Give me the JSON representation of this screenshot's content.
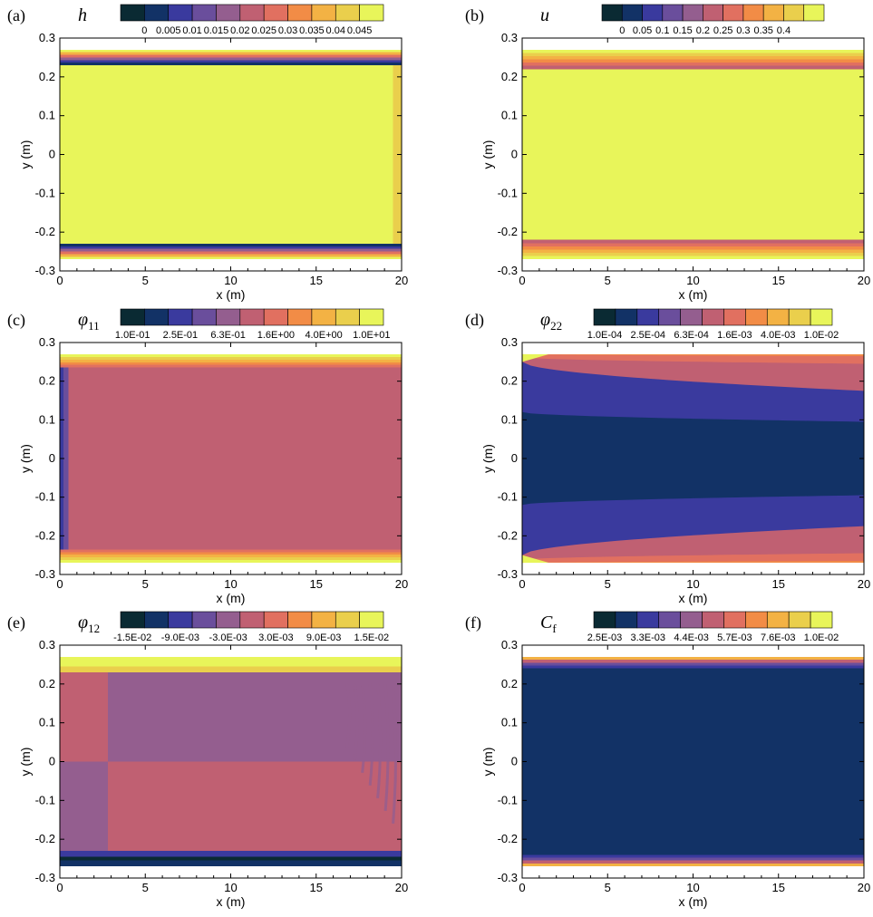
{
  "palette": [
    "#0a2a33",
    "#123266",
    "#3a3a9e",
    "#6a4e9c",
    "#945e8f",
    "#c06072",
    "#e17060",
    "#f28c46",
    "#f3b244",
    "#eacf4c",
    "#e8f55a"
  ],
  "chart_data": [
    {
      "panel": "(a)",
      "variable": "h",
      "variable_sub": "",
      "type": "heatmap",
      "xlabel": "x (m)",
      "ylabel": "y (m)",
      "xlim": [
        0,
        20
      ],
      "ylim": [
        -0.3,
        0.3
      ],
      "xticks": [
        0,
        5,
        10,
        15,
        20
      ],
      "xtick_labels": [
        "0",
        "5",
        "10",
        "15",
        "20"
      ],
      "yticks": [
        0.3,
        0.2,
        0.1,
        0,
        -0.1,
        -0.2,
        -0.3
      ],
      "ytick_labels": [
        "0.3",
        "0.2",
        "0.1",
        "0",
        "-0.1",
        "-0.2",
        "-0.3"
      ],
      "colorbar_labels": [
        "0",
        "0.005",
        "0.01",
        "0.015",
        "0.02",
        "0.025",
        "0.03",
        "0.035",
        "0.04",
        "0.045"
      ],
      "field": "h",
      "bands": [
        {
          "y": [
            0.23,
            0.27
          ],
          "levels": [
            10,
            8,
            6,
            4,
            2,
            1
          ]
        },
        {
          "y": [
            -0.27,
            -0.23
          ],
          "levels": [
            1,
            2,
            4,
            6,
            8,
            10
          ]
        }
      ],
      "regions": [
        {
          "x": [
            0,
            19.5
          ],
          "y": [
            -0.23,
            0.23
          ],
          "level": 10
        },
        {
          "x": [
            19.5,
            20
          ],
          "y": [
            -0.23,
            0.23
          ],
          "level": 9
        }
      ]
    },
    {
      "panel": "(b)",
      "variable": "u",
      "variable_sub": "",
      "type": "heatmap",
      "xlabel": "x (m)",
      "ylabel": "y (m)",
      "xlim": [
        0,
        20
      ],
      "ylim": [
        -0.3,
        0.3
      ],
      "xticks": [
        0,
        5,
        10,
        15,
        20
      ],
      "xtick_labels": [
        "0",
        "5",
        "10",
        "15",
        "20"
      ],
      "yticks": [
        0.3,
        0.2,
        0.1,
        0,
        -0.1,
        -0.2,
        -0.3
      ],
      "ytick_labels": [
        "0.3",
        "0.2",
        "0.1",
        "0",
        "-0.1",
        "-0.2",
        "-0.3"
      ],
      "colorbar_labels": [
        "0",
        "0.05",
        "0.1",
        "0.15",
        "0.2",
        "0.25",
        "0.3",
        "0.35",
        "0.4"
      ],
      "field": "u",
      "bands": [
        {
          "y": [
            0.22,
            0.27
          ],
          "levels": [
            10,
            9,
            8,
            7,
            6,
            5
          ]
        },
        {
          "y": [
            -0.27,
            -0.22
          ],
          "levels": [
            5,
            6,
            7,
            8,
            9,
            10
          ]
        }
      ],
      "regions": [
        {
          "x": [
            0,
            20
          ],
          "y": [
            -0.22,
            0.22
          ],
          "level": 10
        }
      ]
    },
    {
      "panel": "(c)",
      "variable": "φ",
      "variable_sub": "11",
      "type": "heatmap",
      "xlabel": "x (m)",
      "ylabel": "y (m)",
      "xlim": [
        0,
        20
      ],
      "ylim": [
        -0.3,
        0.3
      ],
      "xticks": [
        0,
        5,
        10,
        15,
        20
      ],
      "xtick_labels": [
        "0",
        "5",
        "10",
        "15",
        "20"
      ],
      "yticks": [
        0.3,
        0.2,
        0.1,
        0,
        -0.1,
        -0.2,
        -0.3
      ],
      "ytick_labels": [
        "0.3",
        "0.2",
        "0.1",
        "0",
        "-0.1",
        "-0.2",
        "-0.3"
      ],
      "colorbar_labels": [
        "1.0E-01",
        "2.5E-01",
        "6.3E-01",
        "1.6E+00",
        "4.0E+00",
        "1.0E+01"
      ],
      "field": "phi11",
      "bands": [
        {
          "y": [
            0.235,
            0.27
          ],
          "levels": [
            10,
            9,
            8,
            7,
            6
          ]
        },
        {
          "y": [
            -0.27,
            -0.235
          ],
          "levels": [
            6,
            7,
            8,
            9,
            10
          ]
        }
      ],
      "regions": [
        {
          "x": [
            0,
            20
          ],
          "y": [
            -0.235,
            0.235
          ],
          "level": 5
        },
        {
          "x": [
            0,
            0.2
          ],
          "y": [
            -0.235,
            0.235
          ],
          "level": 2
        },
        {
          "x": [
            0.2,
            0.5
          ],
          "y": [
            -0.235,
            0.235
          ],
          "level": 3
        }
      ]
    },
    {
      "panel": "(d)",
      "variable": "φ",
      "variable_sub": "22",
      "type": "heatmap",
      "xlabel": "x (m)",
      "ylabel": "y (m)",
      "xlim": [
        0,
        20
      ],
      "ylim": [
        -0.3,
        0.3
      ],
      "xticks": [
        0,
        5,
        10,
        15,
        20
      ],
      "xtick_labels": [
        "0",
        "5",
        "10",
        "15",
        "20"
      ],
      "yticks": [
        0.3,
        0.2,
        0.1,
        0,
        -0.1,
        -0.2,
        -0.3
      ],
      "ytick_labels": [
        "0.3",
        "0.2",
        "0.1",
        "0",
        "-0.1",
        "-0.2",
        "-0.3"
      ],
      "colorbar_labels": [
        "1.0E-04",
        "2.5E-04",
        "6.3E-04",
        "1.6E-03",
        "4.0E-03",
        "1.0E-02"
      ],
      "field": "phi22",
      "contour_levels": [
        {
          "level": 2,
          "y0": 0.25,
          "y1": 0.17
        },
        {
          "level": 5,
          "y0": 0.262,
          "y1": 0.245
        },
        {
          "level": 7,
          "y0": 0.268,
          "y1": 0.258
        }
      ],
      "core": {
        "level": 1,
        "y0": 0.12,
        "y1": 0.095
      }
    },
    {
      "panel": "(e)",
      "variable": "φ",
      "variable_sub": "12",
      "type": "heatmap",
      "xlabel": "x (m)",
      "ylabel": "y (m)",
      "xlim": [
        0,
        20
      ],
      "ylim": [
        -0.3,
        0.3
      ],
      "xticks": [
        0,
        5,
        10,
        15,
        20
      ],
      "xtick_labels": [
        "0",
        "5",
        "10",
        "15",
        "20"
      ],
      "yticks": [
        0.3,
        0.2,
        0.1,
        0,
        -0.1,
        -0.2,
        -0.3
      ],
      "ytick_labels": [
        "0.3",
        "0.2",
        "0.1",
        "0",
        "-0.1",
        "-0.2",
        "-0.3"
      ],
      "colorbar_labels": [
        "-1.5E-02",
        "-9.0E-03",
        "-3.0E-03",
        "3.0E-03",
        "9.0E-03",
        "1.5E-02"
      ],
      "field": "phi12",
      "regions": [
        {
          "x": [
            0,
            20
          ],
          "y": [
            0,
            0.235
          ],
          "level": 4
        },
        {
          "x": [
            0,
            20
          ],
          "y": [
            -0.235,
            0
          ],
          "level": 5
        },
        {
          "x": [
            0,
            2.8
          ],
          "y": [
            0,
            0.235
          ],
          "level": 5
        },
        {
          "x": [
            0,
            2.8
          ],
          "y": [
            -0.235,
            0
          ],
          "level": 4
        },
        {
          "x": [
            0,
            20
          ],
          "y": [
            0.235,
            0.27
          ],
          "level": 10
        },
        {
          "x": [
            0,
            20
          ],
          "y": [
            -0.27,
            -0.235
          ],
          "level": 1
        }
      ]
    },
    {
      "panel": "(f)",
      "variable": "C",
      "variable_sub": "f",
      "type": "heatmap",
      "xlabel": "x (m)",
      "ylabel": "y (m)",
      "xlim": [
        0,
        20
      ],
      "ylim": [
        -0.3,
        0.3
      ],
      "xticks": [
        0,
        5,
        10,
        15,
        20
      ],
      "xtick_labels": [
        "0",
        "5",
        "10",
        "15",
        "20"
      ],
      "yticks": [
        0.3,
        0.2,
        0.1,
        0,
        -0.1,
        -0.2,
        -0.3
      ],
      "ytick_labels": [
        "0.3",
        "0.2",
        "0.1",
        "0",
        "-0.1",
        "-0.2",
        "-0.3"
      ],
      "colorbar_labels": [
        "2.5E-03",
        "3.3E-03",
        "4.4E-03",
        "5.7E-03",
        "7.6E-03",
        "1.0E-02"
      ],
      "field": "cf",
      "bands": [
        {
          "y": [
            0.24,
            0.27
          ],
          "levels": [
            8,
            5,
            3,
            2
          ]
        },
        {
          "y": [
            -0.27,
            -0.24
          ],
          "levels": [
            2,
            3,
            5,
            8
          ]
        }
      ],
      "regions": [
        {
          "x": [
            0,
            20
          ],
          "y": [
            -0.24,
            0.24
          ],
          "level": 1
        }
      ]
    }
  ]
}
